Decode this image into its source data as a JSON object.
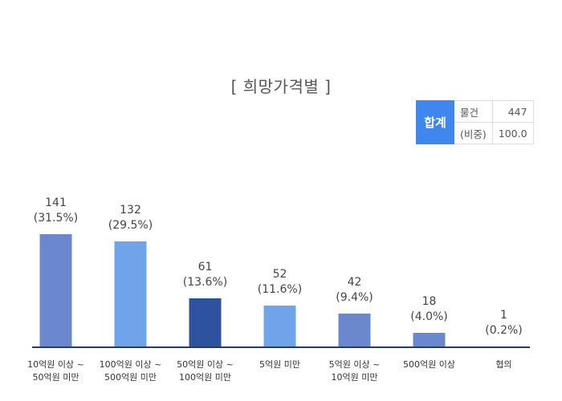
{
  "chart_data": {
    "type": "bar",
    "title": "[ 희망가격별 ]",
    "categories": [
      "10억원 이상 ~\n50억원 미만",
      "100억원 이상 ~\n500억원 미만",
      "50억원 이상 ~\n100억원 미만",
      "5억원 미만",
      "5억원 이상 ~\n10억원 미만",
      "500억원 이상",
      "협의"
    ],
    "values": [
      141,
      132,
      61,
      52,
      42,
      18,
      1
    ],
    "value_labels": [
      "141",
      "132",
      "61",
      "52",
      "42",
      "18",
      "1"
    ],
    "percent_labels": [
      "(31.5%)",
      "(29.5%)",
      "(13.6%)",
      "(11.6%)",
      "(9.4%)",
      "(4.0%)",
      "(0.2%)"
    ],
    "colors": [
      "#6b88cf",
      "#6fa3ea",
      "#2e52a0",
      "#6fa3ea",
      "#6b88cf",
      "#6b88cf",
      "#6b88cf"
    ],
    "axis_color": "#2b3a5e",
    "ylim": [
      0,
      160
    ],
    "grid": false
  },
  "summary": {
    "total_label": "합계",
    "count_label": "물건",
    "count_value": "447",
    "ratio_label": "(비중)",
    "ratio_value": "100.0"
  }
}
